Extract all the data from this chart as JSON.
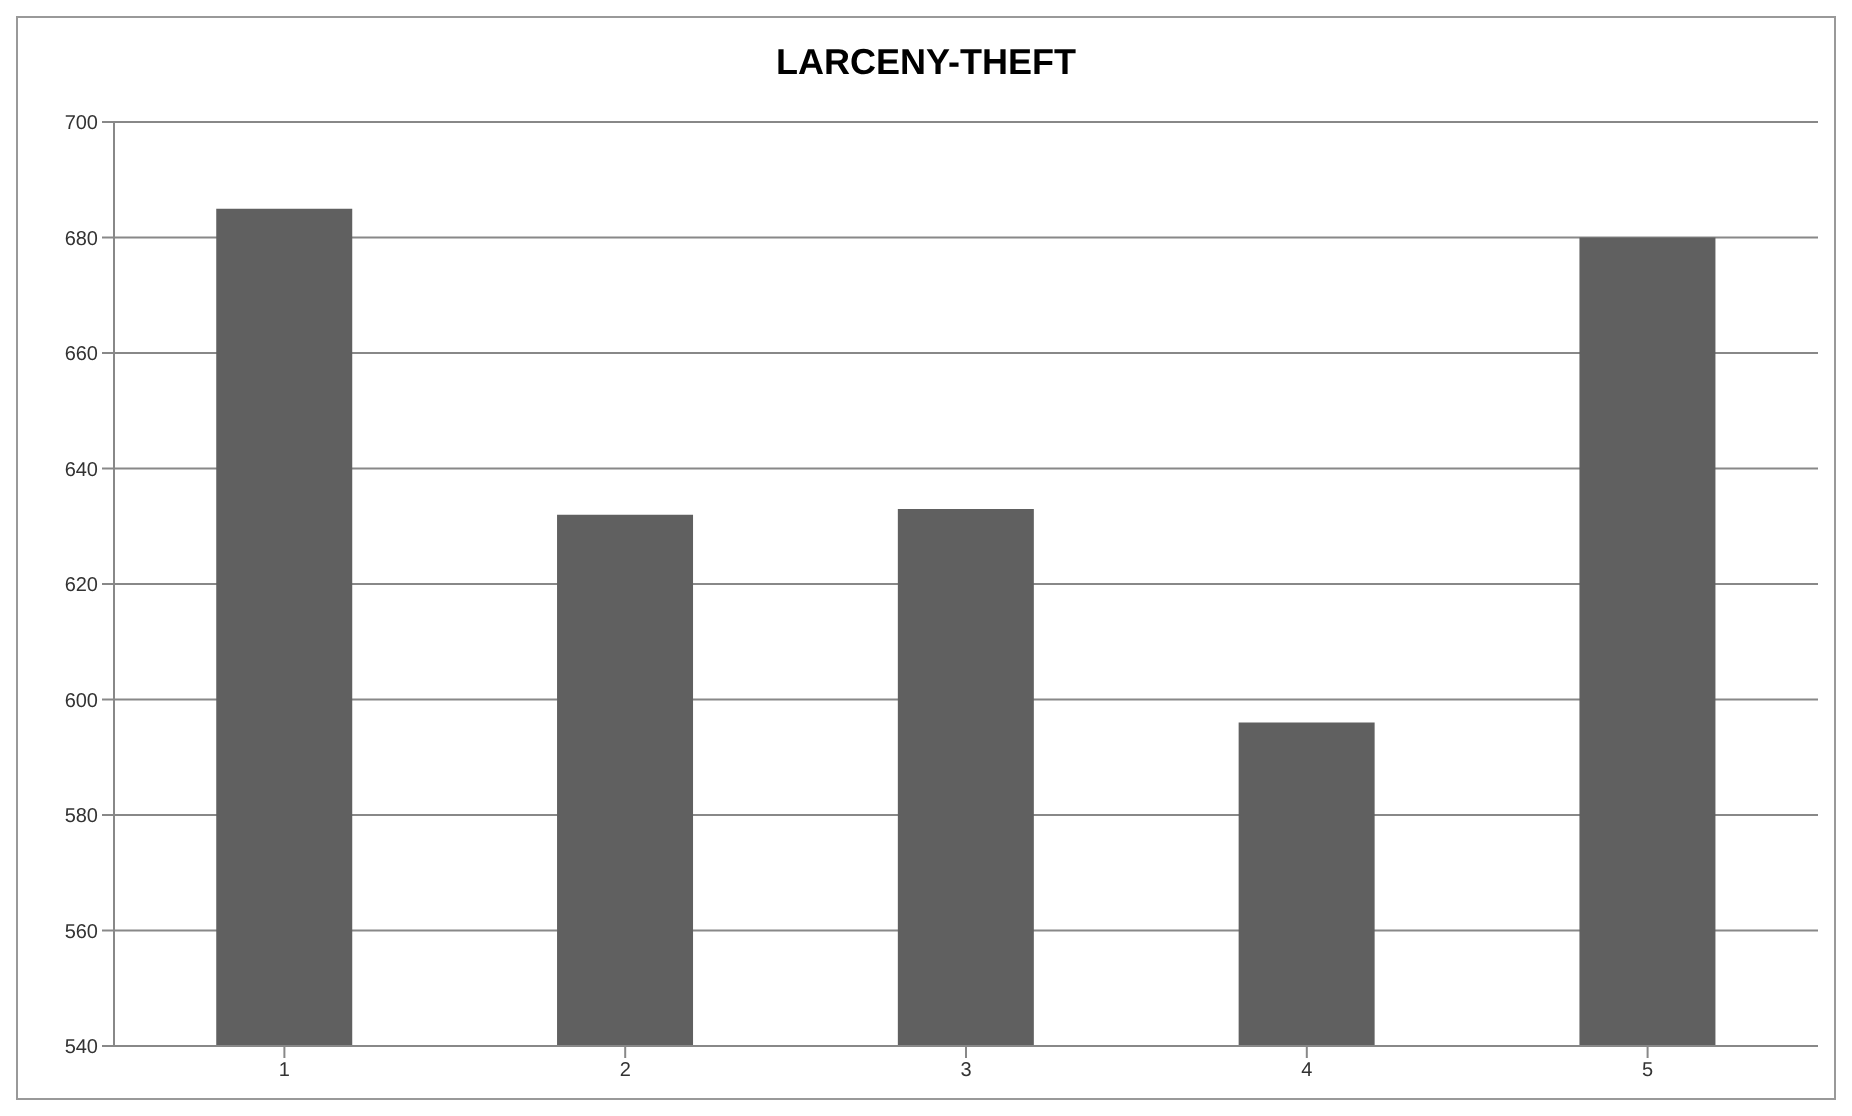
{
  "chart_data": {
    "type": "bar",
    "title": "LARCENY-THEFT",
    "categories": [
      "1",
      "2",
      "3",
      "4",
      "5"
    ],
    "values": [
      685,
      632,
      633,
      596,
      680
    ],
    "color": "#606060",
    "ylim": [
      540,
      700
    ],
    "yticks": [
      540,
      560,
      580,
      600,
      620,
      640,
      660,
      680,
      700
    ],
    "grid": "y"
  }
}
